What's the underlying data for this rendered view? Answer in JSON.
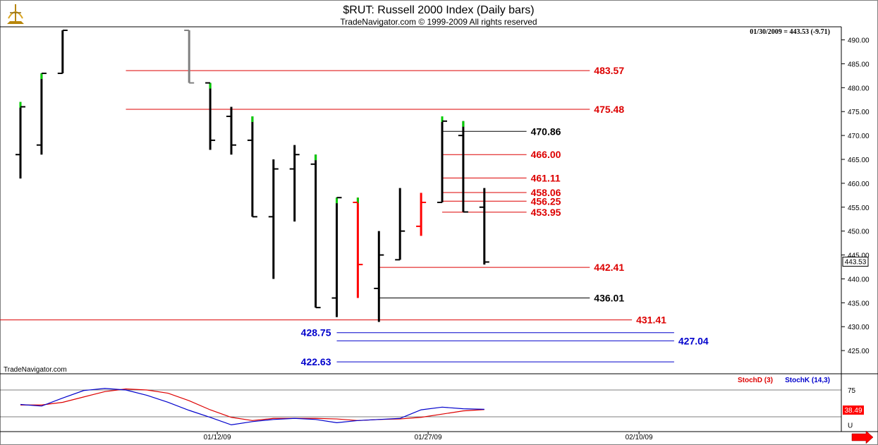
{
  "chart_data": [
    {
      "type": "ohlc",
      "title": "$RUT:  Russell 2000 Index  (Daily bars)",
      "subtitle": "TradeNavigator.com © 1999-2009 All rights reserved",
      "date_readout": "01/30/2009 = 443.53 (-9.71)",
      "last_price_label": "443.53",
      "watermark": "TradeNavigator.com",
      "ylim": [
        420,
        492
      ],
      "y_ticks": [
        425,
        430,
        435,
        440,
        445,
        450,
        455,
        460,
        465,
        470,
        475,
        480,
        485,
        490
      ],
      "y_tick_labels": [
        "425.00",
        "430.00",
        "435.00",
        "440.00",
        "445.00",
        "450.00",
        "455.00",
        "460.00",
        "465.00",
        "470.00",
        "475.00",
        "480.00",
        "485.00",
        "490.00"
      ],
      "x_tick_labels": [
        {
          "label": "01/12/09",
          "bar": 9
        },
        {
          "label": "01/27/09",
          "bar": 19
        },
        {
          "label": "02/10/09",
          "bar": 29
        }
      ],
      "colors": {
        "down": "#000000",
        "up_tick": "#00cc00",
        "red_bar": "#ff0000",
        "gray_bar": "#808080",
        "red_level": "#dd0000",
        "black_level": "#000000",
        "blue_level": "#0000cc"
      },
      "bars": [
        {
          "bar": 0,
          "open": 466,
          "high": 477,
          "low": 461,
          "close": 476,
          "color": "black",
          "hl": "green"
        },
        {
          "bar": 1,
          "open": 468,
          "high": 483,
          "low": 466,
          "close": 483,
          "color": "black",
          "hl": "green"
        },
        {
          "bar": 2,
          "open": 483,
          "high": 492,
          "low": 483,
          "close": 492,
          "color": "black"
        },
        {
          "bar": 8,
          "open": 492,
          "high": 492,
          "low": 481,
          "close": 481,
          "color": "gray"
        },
        {
          "bar": 9,
          "open": 481,
          "high": 481,
          "low": 467,
          "close": 469,
          "color": "black",
          "hl": "green"
        },
        {
          "bar": 10,
          "open": 474,
          "high": 476,
          "low": 466,
          "close": 468,
          "color": "black"
        },
        {
          "bar": 11,
          "open": 469,
          "high": 474,
          "low": 453,
          "close": 453,
          "color": "black",
          "hl": "green"
        },
        {
          "bar": 12,
          "open": 453,
          "high": 465,
          "low": 440,
          "close": 463,
          "color": "black"
        },
        {
          "bar": 13,
          "open": 463,
          "high": 468,
          "low": 452,
          "close": 466,
          "color": "black"
        },
        {
          "bar": 14,
          "open": 464,
          "high": 466,
          "low": 434,
          "close": 434,
          "color": "black",
          "hl": "green"
        },
        {
          "bar": 15,
          "open": 436,
          "high": 457,
          "low": 432,
          "close": 457,
          "color": "black",
          "hl": "green"
        },
        {
          "bar": 16,
          "open": 456,
          "high": 457,
          "low": 436,
          "close": 443,
          "color": "red",
          "hl": "green"
        },
        {
          "bar": 17,
          "open": 438,
          "high": 450,
          "low": 431,
          "close": 445,
          "color": "black"
        },
        {
          "bar": 18,
          "open": 444,
          "high": 459,
          "low": 444,
          "close": 450,
          "color": "black"
        },
        {
          "bar": 19,
          "open": 451,
          "high": 458,
          "low": 449,
          "close": 456,
          "color": "red"
        },
        {
          "bar": 20,
          "open": 456,
          "high": 474,
          "low": 456,
          "close": 473,
          "color": "black",
          "hl": "green"
        },
        {
          "bar": 21,
          "open": 470,
          "high": 473,
          "low": 454,
          "close": 454,
          "color": "black",
          "hl": "green"
        },
        {
          "bar": 22,
          "open": 455,
          "high": 459,
          "low": 443,
          "close": 443.53,
          "color": "black"
        }
      ],
      "levels": [
        {
          "label": "483.57",
          "value": 483.57,
          "color": "red",
          "from_bar": 5,
          "to_bar": 27,
          "label_pos": "right"
        },
        {
          "label": "475.48",
          "value": 475.48,
          "color": "red",
          "from_bar": 5,
          "to_bar": 27,
          "label_pos": "right"
        },
        {
          "label": "470.86",
          "value": 470.86,
          "color": "black",
          "from_bar": 20,
          "to_bar": 24,
          "label_pos": "right"
        },
        {
          "label": "466.00",
          "value": 466.0,
          "color": "red",
          "from_bar": 20,
          "to_bar": 24,
          "label_pos": "right"
        },
        {
          "label": "461.11",
          "value": 461.11,
          "color": "red",
          "from_bar": 20,
          "to_bar": 24,
          "label_pos": "right"
        },
        {
          "label": "458.06",
          "value": 458.06,
          "color": "red",
          "from_bar": 20,
          "to_bar": 24,
          "label_pos": "right"
        },
        {
          "label": "456.25",
          "value": 456.25,
          "color": "red",
          "from_bar": 20,
          "to_bar": 24,
          "label_pos": "right"
        },
        {
          "label": "453.95",
          "value": 453.95,
          "color": "red",
          "from_bar": 20,
          "to_bar": 24,
          "label_pos": "right"
        },
        {
          "label": "442.41",
          "value": 442.41,
          "color": "red",
          "from_bar": 17,
          "to_bar": 27,
          "label_pos": "right"
        },
        {
          "label": "436.01",
          "value": 436.01,
          "color": "black",
          "from_bar": 17,
          "to_bar": 27,
          "label_pos": "right"
        },
        {
          "label": "431.41",
          "value": 431.41,
          "color": "red",
          "from_bar": -1,
          "to_bar": 29,
          "label_pos": "right"
        },
        {
          "label": "428.75",
          "value": 428.75,
          "color": "blue",
          "from_bar": 15,
          "to_bar": 31,
          "label_pos": "left"
        },
        {
          "label": "427.04",
          "value": 427.04,
          "color": "blue",
          "from_bar": 15,
          "to_bar": 31,
          "label_pos": "right"
        },
        {
          "label": "422.63",
          "value": 422.63,
          "color": "blue",
          "from_bar": 15,
          "to_bar": 31,
          "label_pos": "left"
        }
      ]
    },
    {
      "type": "line",
      "ylim": [
        0,
        100
      ],
      "y_tick_labels": [
        {
          "label": "75",
          "value": 75
        },
        {
          "label": "U",
          "value": 10
        }
      ],
      "guides": [
        75,
        25
      ],
      "last_value_label": "38.49",
      "series": [
        {
          "name": "StochD (3)",
          "color": "#dd0000",
          "values": [
            {
              "bar": 0,
              "value": 47
            },
            {
              "bar": 1,
              "value": 47
            },
            {
              "bar": 2,
              "value": 52
            },
            {
              "bar": 3,
              "value": 62
            },
            {
              "bar": 4,
              "value": 72
            },
            {
              "bar": 5,
              "value": 77
            },
            {
              "bar": 6,
              "value": 75
            },
            {
              "bar": 7,
              "value": 69
            },
            {
              "bar": 8,
              "value": 55
            },
            {
              "bar": 9,
              "value": 38
            },
            {
              "bar": 10,
              "value": 24
            },
            {
              "bar": 11,
              "value": 18
            },
            {
              "bar": 12,
              "value": 22
            },
            {
              "bar": 13,
              "value": 22
            },
            {
              "bar": 14,
              "value": 22
            },
            {
              "bar": 15,
              "value": 21
            },
            {
              "bar": 16,
              "value": 18
            },
            {
              "bar": 17,
              "value": 20
            },
            {
              "bar": 18,
              "value": 21
            },
            {
              "bar": 19,
              "value": 24
            },
            {
              "bar": 20,
              "value": 30
            },
            {
              "bar": 21,
              "value": 36
            },
            {
              "bar": 22,
              "value": 38.49
            }
          ]
        },
        {
          "name": "StochK (14,3)",
          "color": "#0000cc",
          "values": [
            {
              "bar": 0,
              "value": 48
            },
            {
              "bar": 1,
              "value": 45
            },
            {
              "bar": 2,
              "value": 60
            },
            {
              "bar": 3,
              "value": 74
            },
            {
              "bar": 4,
              "value": 78
            },
            {
              "bar": 5,
              "value": 75
            },
            {
              "bar": 6,
              "value": 65
            },
            {
              "bar": 7,
              "value": 52
            },
            {
              "bar": 8,
              "value": 37
            },
            {
              "bar": 9,
              "value": 24
            },
            {
              "bar": 10,
              "value": 10
            },
            {
              "bar": 11,
              "value": 16
            },
            {
              "bar": 12,
              "value": 20
            },
            {
              "bar": 13,
              "value": 22
            },
            {
              "bar": 14,
              "value": 20
            },
            {
              "bar": 15,
              "value": 14
            },
            {
              "bar": 16,
              "value": 18
            },
            {
              "bar": 17,
              "value": 20
            },
            {
              "bar": 18,
              "value": 22
            },
            {
              "bar": 19,
              "value": 38
            },
            {
              "bar": 20,
              "value": 43
            },
            {
              "bar": 21,
              "value": 40
            },
            {
              "bar": 22,
              "value": 39
            }
          ]
        }
      ]
    }
  ]
}
